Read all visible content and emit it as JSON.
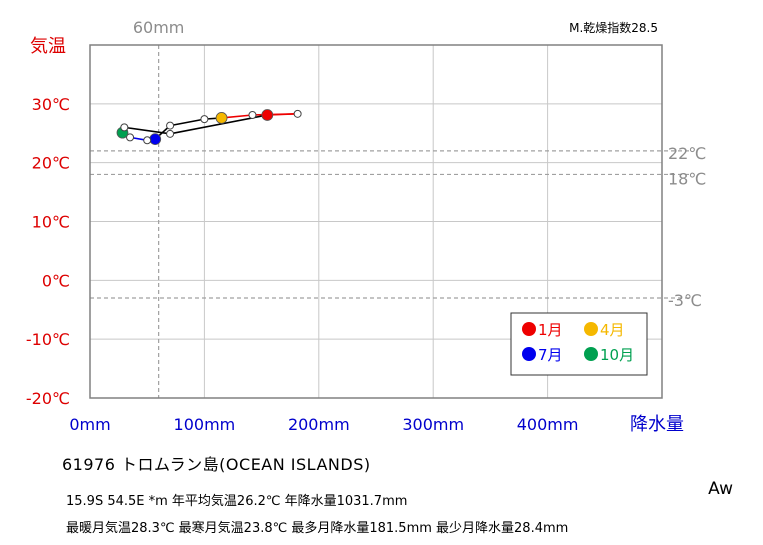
{
  "chart_data": {
    "type": "line",
    "title": "",
    "xlabel": "降水量",
    "ylabel": "気温",
    "xlim": [
      0,
      500
    ],
    "ylim": [
      -20,
      40
    ],
    "x_ticks": [
      {
        "value": 0,
        "label": "0mm"
      },
      {
        "value": 100,
        "label": "100mm"
      },
      {
        "value": 200,
        "label": "200mm"
      },
      {
        "value": 300,
        "label": "300mm"
      },
      {
        "value": 400,
        "label": "400mm"
      }
    ],
    "y_ticks": [
      {
        "value": 30,
        "label": "30℃"
      },
      {
        "value": 20,
        "label": "20℃"
      },
      {
        "value": 10,
        "label": "10℃"
      },
      {
        "value": 0,
        "label": "0℃"
      },
      {
        "value": -10,
        "label": "-10℃"
      },
      {
        "value": -20,
        "label": "-20℃"
      }
    ],
    "reference_lines": {
      "vertical": [
        {
          "value": 60,
          "label": "60mm"
        }
      ],
      "horizontal": [
        {
          "value": 22,
          "label": "22℃"
        },
        {
          "value": 18,
          "label": "18℃"
        },
        {
          "value": -3,
          "label": "-3℃"
        }
      ]
    },
    "dryness_index_label": "M.乾燥指数28.5",
    "months": [
      {
        "month": 1,
        "precip": 155,
        "temp": 28.1
      },
      {
        "month": 2,
        "precip": 181.5,
        "temp": 28.3
      },
      {
        "month": 3,
        "precip": 142,
        "temp": 28.1
      },
      {
        "month": 4,
        "precip": 115,
        "temp": 27.6
      },
      {
        "month": 5,
        "precip": 100,
        "temp": 27.4
      },
      {
        "month": 6,
        "precip": 70,
        "temp": 26.3
      },
      {
        "month": 7,
        "precip": 57,
        "temp": 24.0
      },
      {
        "month": 8,
        "precip": 50,
        "temp": 23.8
      },
      {
        "month": 9,
        "precip": 35,
        "temp": 24.3
      },
      {
        "month": 10,
        "precip": 28.4,
        "temp": 25.1
      },
      {
        "month": 11,
        "precip": 30,
        "temp": 26.0
      },
      {
        "month": 12,
        "precip": 70,
        "temp": 24.9
      }
    ],
    "highlight": [
      {
        "month": 1,
        "color": "#ee0000"
      },
      {
        "month": 4,
        "color": "#f5b800"
      },
      {
        "month": 7,
        "color": "#0000ee"
      },
      {
        "month": 10,
        "color": "#00a050"
      }
    ],
    "legend": {
      "position": "lower-right",
      "entries": [
        {
          "label": "1月",
          "color": "#ee0000"
        },
        {
          "label": "4月",
          "color": "#f5b800"
        },
        {
          "label": "7月",
          "color": "#0000ee"
        },
        {
          "label": "10月",
          "color": "#00a050"
        }
      ]
    },
    "segment_colors": {
      "jan_apr": "#ee0000",
      "apr_jul": "#000000",
      "jul_oct": "#0000ee",
      "oct_jan": "#000000"
    },
    "grid": true
  },
  "station": "61976 トロムラン島(OCEAN ISLANDS)",
  "info_line1": "15.9S 54.5E *m 年平均気温26.2℃ 年降水量1031.7mm",
  "info_line2": "最暖月気温28.3℃ 最寒月気温23.8℃ 最多月降水量181.5mm 最少月降水量28.4mm",
  "climate_class": "Aw",
  "colors": {
    "temp_axis": "#dd0000",
    "precip_axis": "#0000cc",
    "ref": "#8c8c8c"
  }
}
